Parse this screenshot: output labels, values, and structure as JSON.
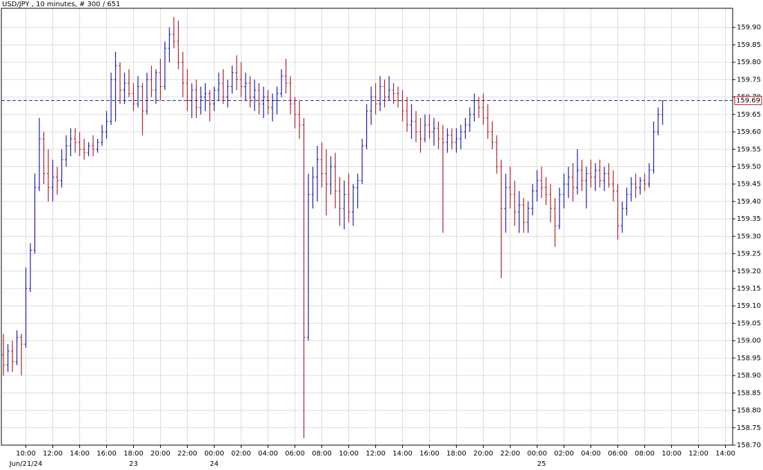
{
  "chart_data": {
    "type": "ohlc",
    "title": "USD/JPY , 10 minutes, # 300 / 651",
    "categories": [
      null,
      null,
      null,
      null,
      null,
      "10:00",
      null,
      null,
      null,
      null,
      null,
      "12:00",
      null,
      null,
      null,
      null,
      null,
      "14:00",
      null,
      null,
      null,
      null,
      null,
      "16:00",
      null,
      null,
      null,
      null,
      null,
      "18:00",
      null,
      null,
      null,
      null,
      null,
      "20:00",
      null,
      null,
      null,
      null,
      null,
      "22:00",
      null,
      null,
      null,
      null,
      null,
      "00:00",
      null,
      null,
      null,
      null,
      null,
      "02:00",
      null,
      null,
      null,
      null,
      null,
      "04:00",
      null,
      null,
      null,
      null,
      null,
      "06:00",
      null,
      null,
      null,
      null,
      null,
      "08:00",
      null,
      null,
      null,
      null,
      null,
      "10:00",
      null,
      null,
      null,
      null,
      null,
      "12:00",
      null,
      null,
      null,
      null,
      null,
      "14:00",
      null,
      null,
      null,
      null,
      null,
      "16:00",
      null,
      null,
      null,
      null,
      null,
      "18:00",
      null,
      null,
      null,
      null,
      null,
      "20:00",
      null,
      null,
      null,
      null,
      null,
      "22:00",
      null,
      null,
      null,
      null,
      null,
      "00:00",
      null,
      null,
      null,
      null,
      null,
      "02:00",
      null,
      null,
      null,
      null,
      null,
      "04:00",
      null,
      null,
      null,
      null,
      null,
      "06:00",
      null,
      null,
      null,
      null,
      null,
      "08:00",
      null,
      null,
      null,
      null,
      null,
      "10:00",
      null,
      null,
      null,
      null,
      null,
      "12:00",
      null,
      null,
      null,
      null,
      null,
      "14:00",
      null
    ],
    "date_labels": [
      null,
      null,
      null,
      null,
      null,
      "Jun/21/24",
      null,
      null,
      null,
      null,
      null,
      null,
      null,
      null,
      null,
      null,
      null,
      null,
      null,
      null,
      null,
      null,
      null,
      null,
      null,
      null,
      null,
      null,
      null,
      "23",
      null,
      null,
      null,
      null,
      null,
      null,
      null,
      null,
      null,
      null,
      null,
      null,
      null,
      null,
      null,
      null,
      null,
      "24",
      null,
      null,
      null,
      null,
      null,
      null,
      null,
      null,
      null,
      null,
      null,
      null,
      null,
      null,
      null,
      null,
      null,
      null,
      null,
      null,
      null,
      null,
      null,
      null,
      null,
      null,
      null,
      null,
      null,
      null,
      null,
      null,
      null,
      null,
      null,
      null,
      null,
      null,
      null,
      null,
      null,
      null,
      null,
      null,
      null,
      null,
      null,
      null,
      null,
      null,
      null,
      null,
      null,
      null,
      null,
      null,
      null,
      null,
      null,
      null,
      null,
      null,
      null,
      null,
      null,
      null,
      null,
      null,
      null,
      null,
      null,
      null,
      "25",
      null,
      null,
      null,
      null,
      null,
      null,
      null,
      null,
      null,
      null,
      null,
      null,
      null,
      null,
      null,
      null,
      null,
      null,
      null,
      null,
      null,
      null,
      null,
      null,
      null,
      null,
      null,
      null,
      null,
      null,
      null,
      null,
      null,
      null,
      null,
      null,
      null,
      null,
      null,
      null,
      null,
      null,
      null
    ],
    "ohlc": [
      [
        158.96,
        159.02,
        158.9,
        158.93
      ],
      [
        158.93,
        158.99,
        158.91,
        158.97
      ],
      [
        158.97,
        159.0,
        158.91,
        158.94
      ],
      [
        158.94,
        159.03,
        158.93,
        159.01
      ],
      [
        159.01,
        159.02,
        158.9,
        158.99
      ],
      [
        158.99,
        159.21,
        158.98,
        159.15
      ],
      [
        159.15,
        159.28,
        159.14,
        159.26
      ],
      [
        159.26,
        159.48,
        159.25,
        159.44
      ],
      [
        159.44,
        159.64,
        159.43,
        159.58
      ],
      [
        159.58,
        159.6,
        159.45,
        159.48
      ],
      [
        159.48,
        159.55,
        159.4,
        159.44
      ],
      [
        159.44,
        159.52,
        159.4,
        159.47
      ],
      [
        159.47,
        159.5,
        159.42,
        159.46
      ],
      [
        159.46,
        159.55,
        159.44,
        159.52
      ],
      [
        159.52,
        159.59,
        159.5,
        159.56
      ],
      [
        159.56,
        159.61,
        159.53,
        159.58
      ],
      [
        159.58,
        159.61,
        159.54,
        159.57
      ],
      [
        159.57,
        159.6,
        159.53,
        159.55
      ],
      [
        159.55,
        159.58,
        159.52,
        159.54
      ],
      [
        159.54,
        159.57,
        159.53,
        159.56
      ],
      [
        159.56,
        159.59,
        159.53,
        159.55
      ],
      [
        159.55,
        159.58,
        159.54,
        159.57
      ],
      [
        159.57,
        159.62,
        159.56,
        159.6
      ],
      [
        159.6,
        159.66,
        159.58,
        159.63
      ],
      [
        159.63,
        159.77,
        159.62,
        159.75
      ],
      [
        159.75,
        159.83,
        159.63,
        159.79
      ],
      [
        159.79,
        159.8,
        159.68,
        159.72
      ],
      [
        159.72,
        159.77,
        159.68,
        159.74
      ],
      [
        159.74,
        159.78,
        159.7,
        159.71
      ],
      [
        159.71,
        159.74,
        159.66,
        159.68
      ],
      [
        159.68,
        159.76,
        159.67,
        159.73
      ],
      [
        159.73,
        159.74,
        159.59,
        159.66
      ],
      [
        159.66,
        159.77,
        159.65,
        159.75
      ],
      [
        159.75,
        159.79,
        159.7,
        159.72
      ],
      [
        159.72,
        159.78,
        159.68,
        159.77
      ],
      [
        159.77,
        159.81,
        159.69,
        159.73
      ],
      [
        159.73,
        159.86,
        159.72,
        159.84
      ],
      [
        159.84,
        159.9,
        159.8,
        159.88
      ],
      [
        159.88,
        159.93,
        159.84,
        159.86
      ],
      [
        159.86,
        159.92,
        159.78,
        159.8
      ],
      [
        159.8,
        159.83,
        159.7,
        159.74
      ],
      [
        159.74,
        159.78,
        159.66,
        159.69
      ],
      [
        159.69,
        159.74,
        159.64,
        159.72
      ],
      [
        159.72,
        159.75,
        159.64,
        159.67
      ],
      [
        159.67,
        159.73,
        159.65,
        159.7
      ],
      [
        159.7,
        159.74,
        159.66,
        159.71
      ],
      [
        159.71,
        159.72,
        159.63,
        159.68
      ],
      [
        159.68,
        159.73,
        159.66,
        159.72
      ],
      [
        159.72,
        159.77,
        159.69,
        159.74
      ],
      [
        159.74,
        159.78,
        159.68,
        159.7
      ],
      [
        159.7,
        159.75,
        159.67,
        159.73
      ],
      [
        159.73,
        159.79,
        159.71,
        159.77
      ],
      [
        159.77,
        159.82,
        159.72,
        159.75
      ],
      [
        159.75,
        159.8,
        159.7,
        159.73
      ],
      [
        159.73,
        159.77,
        159.69,
        159.74
      ],
      [
        159.74,
        159.76,
        159.67,
        159.7
      ],
      [
        159.7,
        159.75,
        159.66,
        159.72
      ],
      [
        159.72,
        159.74,
        159.65,
        159.68
      ],
      [
        159.68,
        159.73,
        159.64,
        159.7
      ],
      [
        159.7,
        159.72,
        159.65,
        159.67
      ],
      [
        159.67,
        159.71,
        159.63,
        159.69
      ],
      [
        159.69,
        159.73,
        159.65,
        159.71
      ],
      [
        159.71,
        159.78,
        159.7,
        159.76
      ],
      [
        159.76,
        159.81,
        159.71,
        159.74
      ],
      [
        159.74,
        159.76,
        159.65,
        159.68
      ],
      [
        159.68,
        159.7,
        159.61,
        159.65
      ],
      [
        159.65,
        159.69,
        159.58,
        159.62
      ],
      [
        159.62,
        159.64,
        158.72,
        159.01
      ],
      [
        159.01,
        159.48,
        159.0,
        159.42
      ],
      [
        159.42,
        159.5,
        159.38,
        159.47
      ],
      [
        159.47,
        159.56,
        159.4,
        159.52
      ],
      [
        159.52,
        159.57,
        159.44,
        159.48
      ],
      [
        159.48,
        159.55,
        159.36,
        159.45
      ],
      [
        159.45,
        159.53,
        159.42,
        159.5
      ],
      [
        159.5,
        159.54,
        159.38,
        159.43
      ],
      [
        159.43,
        159.47,
        159.33,
        159.38
      ],
      [
        159.38,
        159.46,
        159.32,
        159.42
      ],
      [
        159.42,
        159.48,
        159.34,
        159.37
      ],
      [
        159.37,
        159.45,
        159.33,
        159.44
      ],
      [
        159.44,
        159.48,
        159.38,
        159.46
      ],
      [
        159.46,
        159.58,
        159.45,
        159.56
      ],
      [
        159.56,
        159.68,
        159.55,
        159.66
      ],
      [
        159.66,
        159.73,
        159.62,
        159.7
      ],
      [
        159.7,
        159.74,
        159.65,
        159.68
      ],
      [
        159.68,
        159.76,
        159.66,
        159.73
      ],
      [
        159.73,
        159.75,
        159.67,
        159.7
      ],
      [
        159.7,
        159.76,
        159.69,
        159.72
      ],
      [
        159.72,
        159.74,
        159.68,
        159.71
      ],
      [
        159.71,
        159.73,
        159.67,
        159.69
      ],
      [
        159.69,
        159.72,
        159.63,
        159.66
      ],
      [
        159.66,
        159.7,
        159.6,
        159.62
      ],
      [
        159.62,
        159.68,
        159.58,
        159.63
      ],
      [
        159.63,
        159.66,
        159.57,
        159.6
      ],
      [
        159.6,
        159.64,
        159.54,
        159.58
      ],
      [
        159.58,
        159.65,
        159.57,
        159.62
      ],
      [
        159.62,
        159.65,
        159.58,
        159.6
      ],
      [
        159.6,
        159.64,
        159.56,
        159.61
      ],
      [
        159.61,
        159.63,
        159.55,
        159.58
      ],
      [
        159.58,
        159.62,
        159.31,
        159.57
      ],
      [
        159.57,
        159.61,
        159.54,
        159.59
      ],
      [
        159.59,
        159.61,
        159.55,
        159.57
      ],
      [
        159.57,
        159.61,
        159.54,
        159.58
      ],
      [
        159.58,
        159.62,
        159.55,
        159.6
      ],
      [
        159.6,
        159.64,
        159.58,
        159.62
      ],
      [
        159.62,
        159.67,
        159.6,
        159.65
      ],
      [
        159.65,
        159.71,
        159.63,
        159.69
      ],
      [
        159.69,
        159.7,
        159.64,
        159.67
      ],
      [
        159.67,
        159.71,
        159.62,
        159.64
      ],
      [
        159.64,
        159.68,
        159.58,
        159.6
      ],
      [
        159.6,
        159.63,
        159.55,
        159.57
      ],
      [
        159.57,
        159.59,
        159.48,
        159.5
      ],
      [
        159.5,
        159.52,
        159.18,
        159.38
      ],
      [
        159.38,
        159.48,
        159.31,
        159.44
      ],
      [
        159.44,
        159.5,
        159.38,
        159.42
      ],
      [
        159.42,
        159.46,
        159.33,
        159.37
      ],
      [
        159.37,
        159.43,
        159.31,
        159.39
      ],
      [
        159.39,
        159.41,
        159.31,
        159.34
      ],
      [
        159.34,
        159.4,
        159.31,
        159.38
      ],
      [
        159.38,
        159.45,
        159.36,
        159.43
      ],
      [
        159.43,
        159.49,
        159.4,
        159.46
      ],
      [
        159.46,
        159.5,
        159.41,
        159.44
      ],
      [
        159.44,
        159.47,
        159.39,
        159.42
      ],
      [
        159.42,
        159.45,
        159.34,
        159.38
      ],
      [
        159.38,
        159.41,
        159.27,
        159.33
      ],
      [
        159.33,
        159.44,
        159.32,
        159.42
      ],
      [
        159.42,
        159.48,
        159.38,
        159.45
      ],
      [
        159.45,
        159.5,
        159.41,
        159.47
      ],
      [
        159.47,
        159.51,
        159.4,
        159.44
      ],
      [
        159.44,
        159.55,
        159.42,
        159.49
      ],
      [
        159.49,
        159.52,
        159.43,
        159.46
      ],
      [
        159.46,
        159.5,
        159.38,
        159.48
      ],
      [
        159.48,
        159.52,
        159.44,
        159.47
      ],
      [
        159.47,
        159.51,
        159.43,
        159.49
      ],
      [
        159.49,
        159.52,
        159.44,
        159.46
      ],
      [
        159.46,
        159.5,
        159.43,
        159.48
      ],
      [
        159.48,
        159.51,
        159.44,
        159.45
      ],
      [
        159.45,
        159.49,
        159.4,
        159.43
      ],
      [
        159.43,
        159.45,
        159.29,
        159.33
      ],
      [
        159.33,
        159.4,
        159.31,
        159.38
      ],
      [
        159.38,
        159.44,
        159.36,
        159.42
      ],
      [
        159.42,
        159.47,
        159.4,
        159.45
      ],
      [
        159.45,
        159.48,
        159.41,
        159.44
      ],
      [
        159.44,
        159.47,
        159.42,
        159.46
      ],
      [
        159.46,
        159.48,
        159.43,
        159.45
      ],
      [
        159.45,
        159.51,
        159.44,
        159.49
      ],
      [
        159.49,
        159.63,
        159.48,
        159.6
      ],
      [
        159.6,
        159.67,
        159.59,
        159.65
      ],
      [
        159.65,
        159.69,
        159.62,
        159.69
      ],
      null,
      null,
      null,
      null,
      null,
      null,
      null,
      null,
      null,
      null,
      null,
      null,
      null,
      null,
      null
    ],
    "up_color": "#1a1aa8",
    "down_color": "#a8202c",
    "ylim": [
      158.7,
      159.955
    ],
    "yticks": [
      {
        "value": 158.7,
        "label": "158.70"
      },
      {
        "value": 158.75,
        "label": "158.75"
      },
      {
        "value": 158.8,
        "label": "158.80"
      },
      {
        "value": 158.85,
        "label": "158.85"
      },
      {
        "value": 158.9,
        "label": "158.90"
      },
      {
        "value": 158.95,
        "label": "158.95"
      },
      {
        "value": 159,
        "label": "159.00"
      },
      {
        "value": 159.05,
        "label": "159.05"
      },
      {
        "value": 159.1,
        "label": "159.10"
      },
      {
        "value": 159.15,
        "label": "159.15"
      },
      {
        "value": 159.2,
        "label": "159.20"
      },
      {
        "value": 159.25,
        "label": "159.25"
      },
      {
        "value": 159.3,
        "label": "159.30"
      },
      {
        "value": 159.35,
        "label": "159.35"
      },
      {
        "value": 159.4,
        "label": "159.40"
      },
      {
        "value": 159.45,
        "label": "159.45"
      },
      {
        "value": 159.5,
        "label": "159.50"
      },
      {
        "value": 159.55,
        "label": "159.55"
      },
      {
        "value": 159.6,
        "label": "159.60"
      },
      {
        "value": 159.65,
        "label": "159.65"
      },
      {
        "value": 159.7,
        "label": "159.70"
      },
      {
        "value": 159.75,
        "label": "159.75"
      },
      {
        "value": 159.8,
        "label": "159.80"
      },
      {
        "value": 159.85,
        "label": "159.85"
      },
      {
        "value": 159.9,
        "label": "159.90"
      }
    ],
    "last_price": {
      "value": 159.69,
      "label": "159.69"
    },
    "grid": true
  }
}
